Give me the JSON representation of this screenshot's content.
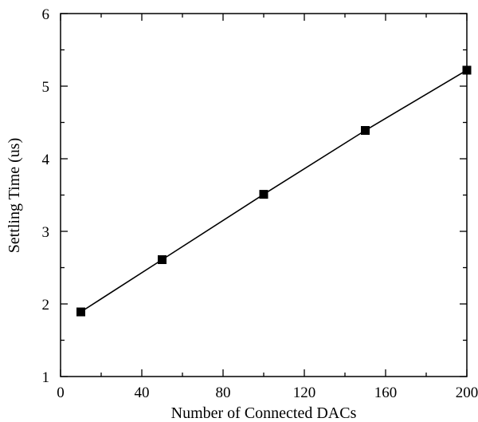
{
  "chart_data": {
    "type": "line",
    "title": "",
    "xlabel": "Number of Connected DACs",
    "ylabel": "Settling Time (us)",
    "xlim": [
      0,
      200
    ],
    "ylim": [
      1,
      6
    ],
    "x_ticks": [
      0,
      40,
      80,
      120,
      160,
      200
    ],
    "x_tick_labels": [
      "0",
      "40",
      "80",
      "120",
      "160",
      "200"
    ],
    "y_ticks": [
      1,
      2,
      3,
      4,
      5,
      6
    ],
    "y_tick_labels": [
      "1",
      "2",
      "3",
      "4",
      "5",
      "6"
    ],
    "x_minor_step": 20,
    "y_minor_step": 0.5,
    "grid": false,
    "legend": "none",
    "series": [
      {
        "marker": "square",
        "color": "#000000",
        "x": [
          10,
          50,
          100,
          150,
          200
        ],
        "y": [
          1.89,
          2.61,
          3.51,
          4.39,
          5.22
        ]
      }
    ]
  }
}
